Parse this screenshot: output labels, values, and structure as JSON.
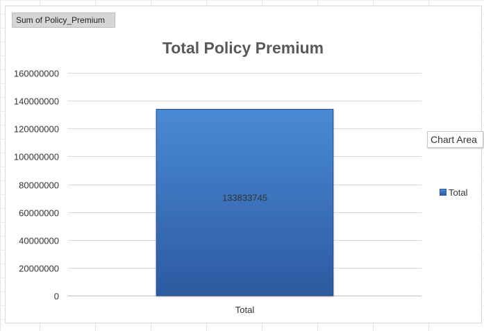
{
  "field_button": {
    "label": "Sum of Policy_Premium"
  },
  "tooltip": {
    "text": "Chart Area"
  },
  "legend": {
    "entries": [
      {
        "label": "Total"
      }
    ]
  },
  "colors": {
    "bar_top": "#4a8ad6",
    "bar_bottom": "#2c5aa0",
    "bar_border": "#24508f",
    "gridline": "#d9d9d9",
    "title": "#595959"
  },
  "chart_data": {
    "type": "bar",
    "title": "Total Policy Premium",
    "categories": [
      "Total"
    ],
    "series": [
      {
        "name": "Total",
        "values": [
          133833745
        ]
      }
    ],
    "data_labels": [
      "133833745"
    ],
    "ylim": [
      0,
      160000000
    ],
    "yticks": [
      "0",
      "20000000",
      "40000000",
      "60000000",
      "80000000",
      "100000000",
      "120000000",
      "140000000",
      "160000000"
    ],
    "xlabel": "",
    "ylabel": "",
    "grid": true,
    "legend_position": "right"
  }
}
